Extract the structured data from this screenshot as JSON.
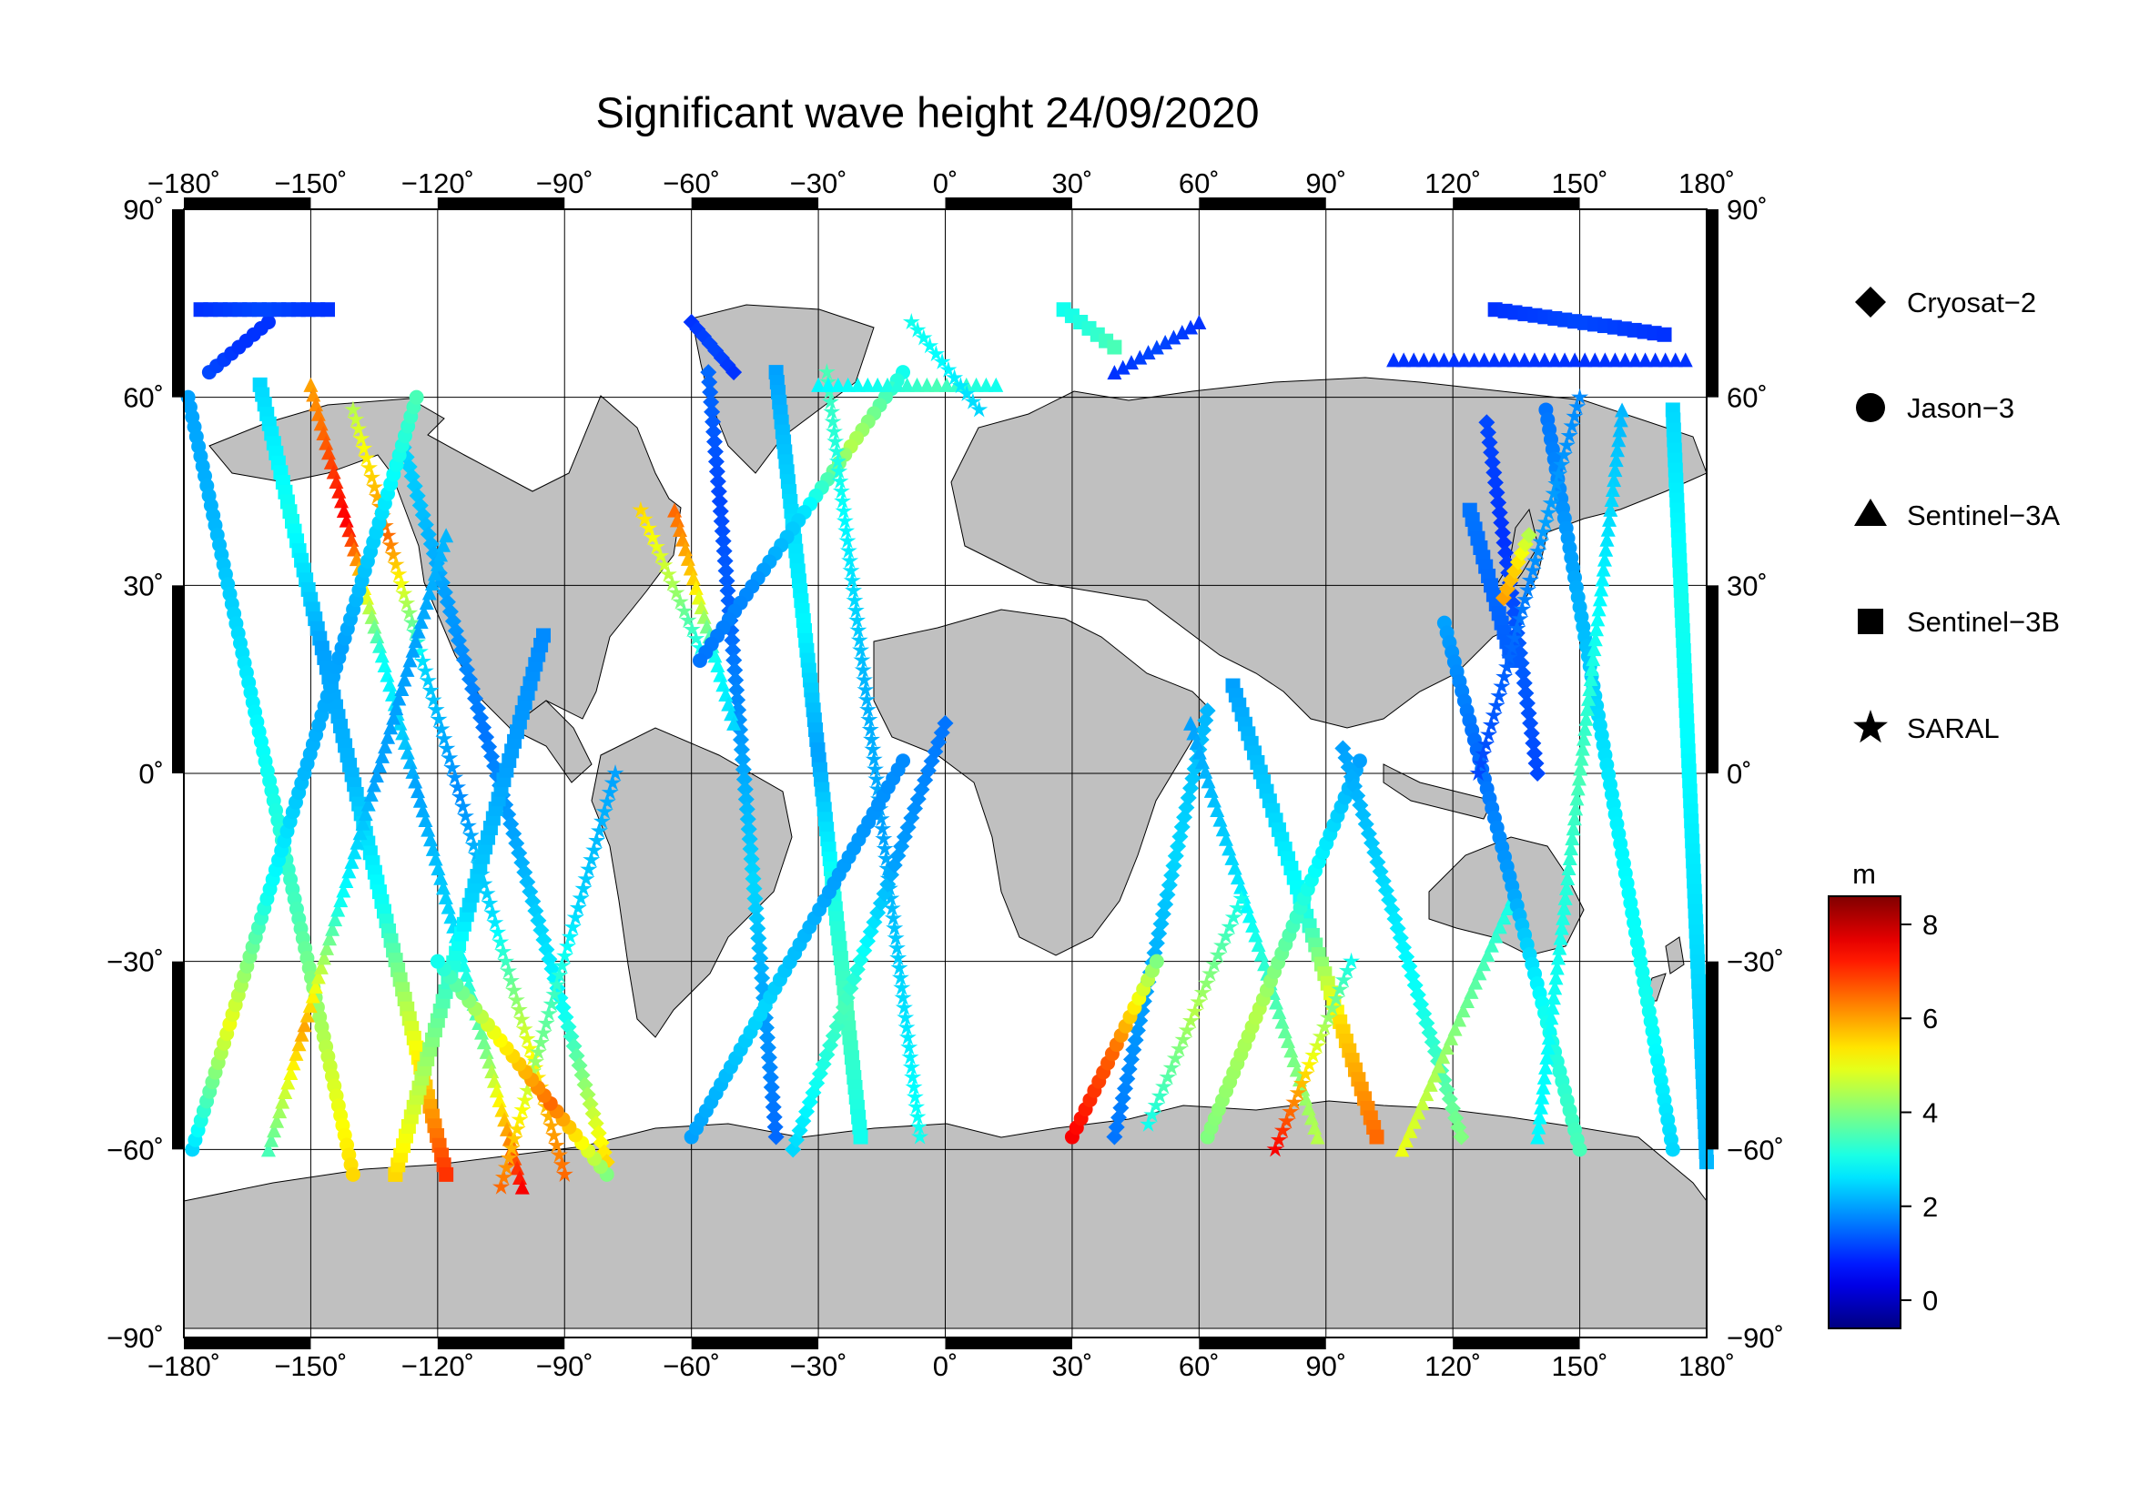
{
  "title": "Significant wave height 24/09/2020",
  "map": {
    "lon_range": [
      -180,
      180
    ],
    "lat_range": [
      -90,
      90
    ],
    "lon_ticks": [
      -180,
      -150,
      -120,
      -90,
      -60,
      -30,
      0,
      30,
      60,
      90,
      120,
      150,
      180
    ],
    "lat_ticks": [
      90,
      60,
      30,
      0,
      -30,
      -60,
      -90
    ],
    "lon_labels": [
      "−180˚",
      "−150˚",
      "−120˚",
      "−90˚",
      "−60˚",
      "−30˚",
      "0˚",
      "30˚",
      "60˚",
      "90˚",
      "120˚",
      "150˚",
      "180˚"
    ],
    "lat_labels": [
      "90˚",
      "60˚",
      "30˚",
      "0˚",
      "−30˚",
      "−60˚",
      "−90˚"
    ],
    "grid": true,
    "ocean_color": "#ffffff",
    "land_color": "#c0c0c0",
    "frame_color": "#000000"
  },
  "legend": {
    "placement": "right",
    "items": [
      {
        "label": "Cryosat−2",
        "symbol": "diamond"
      },
      {
        "label": "Jason−3",
        "symbol": "circle"
      },
      {
        "label": "Sentinel−3A",
        "symbol": "triangle"
      },
      {
        "label": "Sentinel−3B",
        "symbol": "square"
      },
      {
        "label": "SARAL",
        "symbol": "star"
      }
    ]
  },
  "colorbar": {
    "unit": "m",
    "min": -0.6,
    "max": 8.6,
    "ticks": [
      0,
      2,
      4,
      6,
      8
    ],
    "tick_labels": [
      "0",
      "2",
      "4",
      "6",
      "8"
    ],
    "colormap": "jet"
  },
  "tracks": [
    {
      "satellite": "Jason−3",
      "start": [
        -179,
        60
      ],
      "end": [
        -140,
        -64
      ],
      "values": [
        2.0,
        2.2,
        2.6,
        3.0,
        3.5,
        4.5,
        5.5
      ]
    },
    {
      "satellite": "Sentinel−3B",
      "start": [
        -162,
        62
      ],
      "end": [
        -118,
        -64
      ],
      "values": [
        2.5,
        3.0,
        2.0,
        2.2,
        3.0,
        5.0,
        7.0
      ]
    },
    {
      "satellite": "Sentinel−3A",
      "start": [
        -150,
        62
      ],
      "end": [
        -100,
        -66
      ],
      "values": [
        6.0,
        7.5,
        3.0,
        2.0,
        2.5,
        4.0,
        7.5
      ]
    },
    {
      "satellite": "SARAL",
      "start": [
        -140,
        58
      ],
      "end": [
        -90,
        -64
      ],
      "values": [
        4.5,
        6.5,
        2.5,
        1.8,
        2.6,
        5.0,
        6.5
      ]
    },
    {
      "satellite": "Cryosat−2",
      "start": [
        -128,
        52
      ],
      "end": [
        -80,
        -62
      ],
      "values": [
        2.5,
        2.0,
        1.6,
        2.2,
        3.0,
        5.5
      ]
    },
    {
      "satellite": "Jason−3",
      "start": [
        -178,
        -60
      ],
      "end": [
        -125,
        60
      ],
      "values": [
        2.5,
        5.0,
        3.0,
        2.2,
        2.0,
        2.5,
        3.5
      ]
    },
    {
      "satellite": "Sentinel−3A",
      "start": [
        -160,
        -60
      ],
      "end": [
        -118,
        38
      ],
      "values": [
        3.5,
        6.0,
        3.0,
        2.0,
        2.0,
        2.2
      ]
    },
    {
      "satellite": "Sentinel−3B",
      "start": [
        -130,
        -64
      ],
      "end": [
        -95,
        22
      ],
      "values": [
        5.5,
        4.0,
        2.5,
        2.0,
        1.8
      ]
    },
    {
      "satellite": "SARAL",
      "start": [
        -105,
        -66
      ],
      "end": [
        -78,
        0
      ],
      "values": [
        6.5,
        4.0,
        2.5,
        2.0
      ]
    },
    {
      "satellite": "Jason−3",
      "start": [
        -80,
        -64
      ],
      "end": [
        -120,
        -30
      ],
      "values": [
        4.0,
        6.5,
        5.0,
        3.0
      ]
    },
    {
      "satellite": "Cryosat−2",
      "start": [
        -56,
        64
      ],
      "end": [
        -40,
        -58
      ],
      "values": [
        1.5,
        1.2,
        1.5,
        2.0,
        2.5,
        2.0,
        1.5
      ]
    },
    {
      "satellite": "Sentinel−3A",
      "start": [
        -64,
        42
      ],
      "end": [
        -50,
        8
      ],
      "values": [
        6.5,
        5.5,
        3.0,
        2.5
      ]
    },
    {
      "satellite": "SARAL",
      "start": [
        -72,
        42
      ],
      "end": [
        -58,
        20
      ],
      "values": [
        5.5,
        4.5,
        3.0
      ]
    },
    {
      "satellite": "Sentinel−3B",
      "start": [
        -40,
        64
      ],
      "end": [
        -20,
        -58
      ],
      "values": [
        2.0,
        2.5,
        2.8,
        2.0,
        3.0,
        3.5,
        3.0
      ]
    },
    {
      "satellite": "Jason−3",
      "start": [
        -10,
        64
      ],
      "end": [
        -58,
        18
      ],
      "values": [
        3.0,
        4.5,
        2.5,
        1.8,
        1.6
      ]
    },
    {
      "satellite": "SARAL",
      "start": [
        -28,
        64
      ],
      "end": [
        -6,
        -58
      ],
      "values": [
        3.5,
        2.8,
        2.2,
        2.0,
        2.5,
        3.0
      ]
    },
    {
      "satellite": "Cryosat−2",
      "start": [
        -36,
        -60
      ],
      "end": [
        0,
        8
      ],
      "values": [
        2.5,
        3.5,
        2.0,
        1.6
      ]
    },
    {
      "satellite": "Jason−3",
      "start": [
        -60,
        -58
      ],
      "end": [
        -10,
        2
      ],
      "values": [
        2.0,
        2.5,
        2.0,
        1.8
      ]
    },
    {
      "satellite": "Sentinel−3A",
      "start": [
        -30,
        62
      ],
      "end": [
        12,
        62
      ],
      "values": [
        2.8,
        3.0,
        3.5,
        3.0
      ]
    },
    {
      "satellite": "SARAL",
      "start": [
        -8,
        72
      ],
      "end": [
        8,
        58
      ],
      "values": [
        3.0,
        2.8,
        2.5
      ]
    },
    {
      "satellite": "Sentinel−3B",
      "start": [
        28,
        74
      ],
      "end": [
        40,
        68
      ],
      "values": [
        3.0,
        3.2,
        3.5
      ]
    },
    {
      "satellite": "Cryosat−2",
      "start": [
        40,
        -58
      ],
      "end": [
        62,
        10
      ],
      "values": [
        1.6,
        2.0,
        2.5,
        2.2
      ]
    },
    {
      "satellite": "Jason−3",
      "start": [
        30,
        -58
      ],
      "end": [
        50,
        -30
      ],
      "values": [
        7.5,
        6.5,
        4.0
      ]
    },
    {
      "satellite": "Sentinel−3A",
      "start": [
        58,
        8
      ],
      "end": [
        88,
        -58
      ],
      "values": [
        2.0,
        2.5,
        3.5,
        4.5
      ]
    },
    {
      "satellite": "SARAL",
      "start": [
        48,
        -56
      ],
      "end": [
        70,
        -20
      ],
      "values": [
        3.0,
        4.5,
        3.0
      ]
    },
    {
      "satellite": "Sentinel−3B",
      "start": [
        68,
        14
      ],
      "end": [
        102,
        -58
      ],
      "values": [
        2.0,
        2.4,
        3.0,
        5.5,
        6.5
      ]
    },
    {
      "satellite": "Jason−3",
      "start": [
        62,
        -58
      ],
      "end": [
        98,
        2
      ],
      "values": [
        4.0,
        4.5,
        3.0,
        2.0
      ]
    },
    {
      "satellite": "SARAL",
      "start": [
        78,
        -60
      ],
      "end": [
        96,
        -30
      ],
      "values": [
        7.5,
        5.0,
        3.0
      ]
    },
    {
      "satellite": "Cryosat−2",
      "start": [
        94,
        4
      ],
      "end": [
        122,
        -58
      ],
      "values": [
        2.0,
        2.5,
        3.0,
        4.0
      ]
    },
    {
      "satellite": "Sentinel−3A",
      "start": [
        108,
        -60
      ],
      "end": [
        134,
        -20
      ],
      "values": [
        5.0,
        4.0,
        3.0
      ]
    },
    {
      "satellite": "Jason−3",
      "start": [
        118,
        24
      ],
      "end": [
        150,
        -60
      ],
      "values": [
        2.0,
        1.5,
        2.0,
        3.0,
        3.5
      ]
    },
    {
      "satellite": "Sentinel−3B",
      "start": [
        124,
        42
      ],
      "end": [
        134,
        18
      ],
      "values": [
        1.6,
        1.5,
        1.4
      ]
    },
    {
      "satellite": "Cryosat−2",
      "start": [
        128,
        56
      ],
      "end": [
        140,
        0
      ],
      "values": [
        1.2,
        1.0,
        1.4,
        1.2
      ]
    },
    {
      "satellite": "Jason−3",
      "start": [
        142,
        58
      ],
      "end": [
        172,
        -60
      ],
      "values": [
        1.6,
        2.0,
        2.5,
        2.8,
        3.0,
        2.5
      ]
    },
    {
      "satellite": "SARAL",
      "start": [
        150,
        60
      ],
      "end": [
        126,
        0
      ],
      "values": [
        1.8,
        2.0,
        1.5,
        1.2
      ]
    },
    {
      "satellite": "Sentinel−3A",
      "start": [
        160,
        58
      ],
      "end": [
        140,
        -58
      ],
      "values": [
        2.2,
        2.8,
        3.5,
        3.0,
        2.8
      ]
    },
    {
      "satellite": "Sentinel−3B",
      "start": [
        172,
        58
      ],
      "end": [
        180,
        -62
      ],
      "values": [
        2.5,
        3.0,
        2.8,
        2.5,
        2.2
      ]
    },
    {
      "satellite": "Cryosat−2",
      "start": [
        132,
        28
      ],
      "end": [
        138,
        38
      ],
      "values": [
        6.0,
        5.5,
        4.5
      ]
    },
    {
      "satellite": "Sentinel−3A",
      "start": [
        106,
        66
      ],
      "end": [
        175,
        66
      ],
      "values": [
        1.0,
        1.0,
        1.0,
        1.0
      ]
    },
    {
      "satellite": "Sentinel−3B",
      "start": [
        130,
        74
      ],
      "end": [
        170,
        70
      ],
      "values": [
        1.0,
        1.2,
        1.0
      ]
    },
    {
      "satellite": "Jason−3",
      "start": [
        -174,
        64
      ],
      "end": [
        -160,
        72
      ],
      "values": [
        1.2,
        1.0,
        1.0
      ]
    },
    {
      "satellite": "Sentinel−3B",
      "start": [
        -176,
        74
      ],
      "end": [
        -146,
        74
      ],
      "values": [
        1.0,
        1.2,
        1.0
      ]
    },
    {
      "satellite": "Cryosat−2",
      "start": [
        -60,
        72
      ],
      "end": [
        -50,
        64
      ],
      "values": [
        1.0,
        1.2,
        1.0
      ]
    },
    {
      "satellite": "Sentinel−3A",
      "start": [
        40,
        64
      ],
      "end": [
        60,
        72
      ],
      "values": [
        1.0,
        1.2,
        1.0
      ]
    }
  ]
}
